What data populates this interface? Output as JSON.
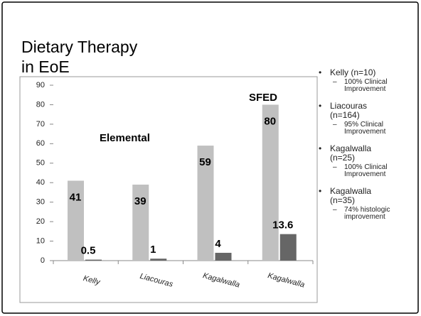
{
  "title": "Dietary Therapy in EoE",
  "chart_data": {
    "type": "bar",
    "categories": [
      "Kelly",
      "Liacouras",
      "Kagalwalla",
      "Kagalwalla"
    ],
    "series": [
      {
        "color": "#c0c0c0",
        "values": [
          41,
          39,
          59,
          80
        ]
      },
      {
        "color": "#666666",
        "values": [
          0.5,
          1,
          4,
          13.6
        ]
      }
    ],
    "ylim": [
      0,
      90
    ],
    "yticks": [
      0,
      10,
      20,
      30,
      40,
      50,
      60,
      70,
      80,
      90
    ],
    "grid": false,
    "annotations": [
      "Elemental",
      "SFED"
    ]
  },
  "bullets": [
    {
      "text": "Kelly (n=10)",
      "sub": "100% Clinical Improvement"
    },
    {
      "text": "Liacouras (n=164)",
      "sub": "95% Clinical Improvement"
    },
    {
      "text": "Kagalwalla (n=25)",
      "sub": "100% Clinical Improvement"
    },
    {
      "text": "Kagalwalla (n=35)",
      "sub": "74% histologic improvement"
    }
  ]
}
